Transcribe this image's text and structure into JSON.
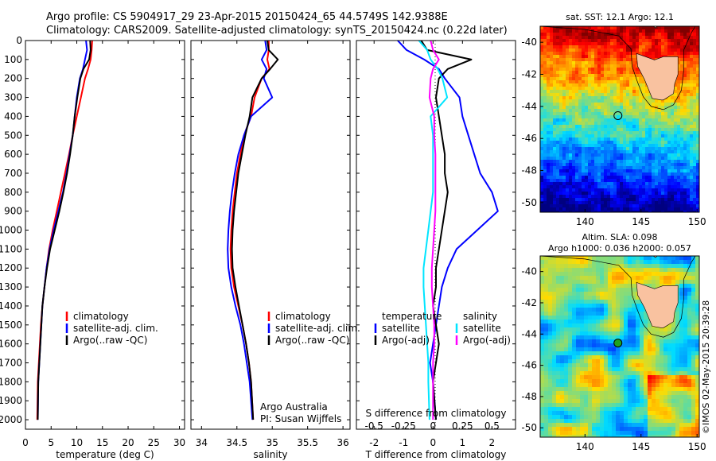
{
  "header": {
    "line1": "Argo profile: CS 5904917_29 23-Apr-2015 20150424_65 44.5749S 142.9388E",
    "line2": "Climatology: CARS2009. Satellite-adjusted climatology: synTS_20150424.nc (0.22d later)"
  },
  "colors": {
    "climatology": "#ff0000",
    "satellite": "#0000ff",
    "argo": "#000000",
    "sat_salinity": "#00e5ff",
    "argo_salinity": "#ff00ff",
    "land": "#f9c2a0"
  },
  "chart_data": [
    {
      "type": "line",
      "id": "temperature",
      "xlabel": "temperature (deg C)",
      "ylabel": "",
      "xlim": [
        0,
        31
      ],
      "ylim": [
        2050,
        0
      ],
      "x_ticks": [
        "0",
        "5",
        "10",
        "15",
        "20",
        "25",
        "30"
      ],
      "y_ticks": [
        "0",
        "100",
        "200",
        "300",
        "400",
        "500",
        "600",
        "700",
        "800",
        "900",
        "1000",
        "1100",
        "1200",
        "1300",
        "1400",
        "1500",
        "1600",
        "1700",
        "1800",
        "1900",
        "2000"
      ],
      "legend": [
        "climatology",
        "satellite-adj. clim.",
        "Argo(..raw -QC)"
      ],
      "series": [
        {
          "name": "climatology",
          "color": "#ff0000",
          "x": [
            13.0,
            12.9,
            12.7,
            12.2,
            11.6,
            10.8,
            10.0,
            9.2,
            8.5,
            7.7,
            6.9,
            6.1,
            5.3,
            4.6,
            4.1,
            3.7,
            3.3,
            3.0,
            2.8,
            2.6,
            2.4,
            2.3
          ],
          "y": [
            0,
            50,
            100,
            150,
            200,
            300,
            400,
            500,
            600,
            700,
            800,
            900,
            1000,
            1100,
            1200,
            1300,
            1400,
            1500,
            1600,
            1700,
            1800,
            2000
          ]
        },
        {
          "name": "satellite-adj. clim.",
          "color": "#0000ff",
          "x": [
            11.8,
            12.0,
            11.6,
            11.2,
            10.6,
            10.0,
            9.6,
            9.2,
            8.6,
            8.0,
            7.3,
            6.4,
            5.5,
            4.7,
            4.1,
            3.7,
            3.3,
            3.1,
            2.9,
            2.7,
            2.5,
            2.4
          ],
          "y": [
            0,
            50,
            100,
            150,
            200,
            300,
            400,
            500,
            600,
            700,
            800,
            900,
            1000,
            1100,
            1200,
            1300,
            1400,
            1500,
            1600,
            1700,
            1800,
            2000
          ]
        },
        {
          "name": "Argo(..raw -QC)",
          "color": "#000000",
          "x": [
            12.6,
            12.7,
            12.4,
            11.3,
            10.7,
            10.1,
            9.6,
            9.2,
            8.7,
            8.1,
            7.4,
            6.6,
            5.7,
            4.8,
            4.2,
            3.7,
            3.3,
            3.1,
            2.9,
            2.7,
            2.5,
            2.4
          ],
          "y": [
            0,
            50,
            100,
            150,
            200,
            300,
            400,
            500,
            600,
            700,
            800,
            900,
            1000,
            1100,
            1200,
            1300,
            1400,
            1500,
            1600,
            1700,
            1800,
            2000
          ]
        }
      ]
    },
    {
      "type": "line",
      "id": "salinity",
      "xlabel": "salinity",
      "xlim": [
        33.85,
        36.1
      ],
      "ylim": [
        2050,
        0
      ],
      "x_ticks": [
        "34",
        "34.5",
        "35",
        "35.5",
        "36"
      ],
      "legend": [
        "climatology",
        "satellite-adj. clim.",
        "Argo(..raw -QC)"
      ],
      "annotation": [
        "Argo Australia",
        "PI: Susan Wijffels"
      ],
      "series": [
        {
          "name": "climatology",
          "color": "#ff0000",
          "x": [
            34.95,
            34.95,
            34.93,
            34.96,
            34.85,
            34.75,
            34.7,
            34.6,
            34.55,
            34.5,
            34.47,
            34.44,
            34.42,
            34.41,
            34.42,
            34.46,
            34.52,
            34.58,
            34.63,
            34.67,
            34.7,
            34.73
          ],
          "y": [
            0,
            50,
            100,
            150,
            200,
            300,
            400,
            500,
            600,
            700,
            800,
            900,
            1000,
            1100,
            1200,
            1300,
            1400,
            1500,
            1600,
            1700,
            1800,
            2000
          ]
        },
        {
          "name": "satellite-adj. clim.",
          "color": "#0000ff",
          "x": [
            34.9,
            34.92,
            34.85,
            34.92,
            34.88,
            35.0,
            34.7,
            34.6,
            34.52,
            34.47,
            34.43,
            34.4,
            34.38,
            34.37,
            34.38,
            34.42,
            34.48,
            34.55,
            34.6,
            34.64,
            34.68,
            34.72
          ],
          "y": [
            0,
            50,
            100,
            150,
            200,
            300,
            400,
            500,
            600,
            700,
            800,
            900,
            1000,
            1100,
            1200,
            1300,
            1400,
            1500,
            1600,
            1700,
            1800,
            2000
          ]
        },
        {
          "name": "Argo(..raw -QC)",
          "color": "#000000",
          "x": [
            34.93,
            34.95,
            35.08,
            34.97,
            34.85,
            34.72,
            34.68,
            34.62,
            34.57,
            34.52,
            34.49,
            34.46,
            34.44,
            34.43,
            34.44,
            34.48,
            34.53,
            34.58,
            34.63,
            34.67,
            34.7,
            34.73
          ],
          "y": [
            0,
            50,
            100,
            150,
            200,
            300,
            400,
            500,
            600,
            700,
            800,
            900,
            1000,
            1100,
            1200,
            1300,
            1400,
            1500,
            1600,
            1700,
            1800,
            2000
          ]
        }
      ]
    },
    {
      "type": "line",
      "id": "difference",
      "xlabel": "T difference from climatology",
      "x2label": "S difference from climatology",
      "xlim": [
        -2.6,
        2.8
      ],
      "x2lim": [
        -0.65,
        0.7
      ],
      "ylim": [
        2050,
        0
      ],
      "x_ticks": [
        "-2",
        "-1",
        "0",
        "1",
        "2"
      ],
      "x2_ticks": [
        "-0.5",
        "-0.25",
        "0",
        "0.25",
        "0.5"
      ],
      "legend_headers": [
        "temperature",
        "salinity"
      ],
      "legend": [
        "satellite",
        "Argo(-adj)",
        "satellite",
        "Argo(-adj)"
      ],
      "series": [
        {
          "name": "satellite",
          "group": "temperature",
          "color": "#0000ff",
          "x": [
            -1.2,
            -0.9,
            -0.3,
            0.2,
            0.4,
            0.9,
            1.0,
            1.2,
            1.4,
            1.6,
            2.0,
            2.2,
            1.5,
            0.8,
            0.5,
            0.3,
            0.2,
            0.1,
            0.0,
            -0.1,
            0.0,
            0.1
          ],
          "y": [
            0,
            50,
            100,
            150,
            200,
            300,
            400,
            500,
            600,
            700,
            800,
            900,
            1000,
            1100,
            1200,
            1300,
            1400,
            1500,
            1600,
            1700,
            1800,
            2000
          ]
        },
        {
          "name": "Argo(-adj)",
          "group": "temperature",
          "color": "#000000",
          "x": [
            -0.4,
            -0.2,
            1.3,
            0.5,
            0.2,
            0.1,
            0.2,
            0.3,
            0.4,
            0.4,
            0.5,
            0.4,
            0.3,
            0.2,
            0.1,
            0.1,
            0.0,
            0.1,
            0.2,
            0.1,
            0.0,
            0.1
          ],
          "y": [
            0,
            50,
            100,
            150,
            200,
            300,
            400,
            500,
            600,
            700,
            800,
            900,
            1000,
            1100,
            1200,
            1300,
            1400,
            1500,
            1600,
            1700,
            1800,
            2000
          ]
        },
        {
          "name": "satellite",
          "group": "salinity",
          "color": "#00e5ff",
          "x": [
            -0.12,
            -0.05,
            -0.02,
            0.04,
            0.08,
            0.12,
            -0.02,
            0.0,
            0.0,
            0.0,
            0.0,
            -0.02,
            -0.04,
            -0.06,
            -0.08,
            -0.08,
            -0.07,
            -0.06,
            -0.05,
            -0.04,
            -0.04,
            -0.03
          ],
          "y": [
            0,
            50,
            100,
            150,
            200,
            300,
            400,
            500,
            600,
            700,
            800,
            900,
            1000,
            1100,
            1200,
            1300,
            1400,
            1500,
            1600,
            1700,
            1800,
            2000
          ]
        },
        {
          "name": "Argo(-adj)",
          "group": "salinity",
          "color": "#ff00ff",
          "x": [
            -0.02,
            0.0,
            0.05,
            0.0,
            -0.02,
            -0.03,
            0.01,
            0.01,
            0.02,
            0.02,
            0.02,
            0.02,
            0.01,
            0.0,
            -0.01,
            -0.01,
            0.0,
            0.01,
            0.01,
            0.0,
            0.0,
            0.0
          ],
          "y": [
            0,
            50,
            100,
            150,
            200,
            300,
            400,
            500,
            600,
            700,
            800,
            900,
            1000,
            1100,
            1200,
            1300,
            1400,
            1500,
            1600,
            1700,
            1800,
            2000
          ]
        }
      ]
    },
    {
      "type": "heatmap",
      "id": "sst-map",
      "title": "sat. SST: 12.1 Argo: 12.1",
      "xlim": [
        136,
        150.2
      ],
      "ylim": [
        -50.6,
        -39
      ],
      "x_ticks": [
        "140",
        "145",
        "150"
      ],
      "y_ticks": [
        "-40",
        "-42",
        "-44",
        "-46",
        "-48",
        "-50"
      ],
      "argo_position": {
        "lon": 142.9388,
        "lat": -44.5749
      }
    },
    {
      "type": "heatmap",
      "id": "sla-map",
      "title": [
        "Altim. SLA: 0.098",
        "Argo h1000: 0.036 h2000: 0.057"
      ],
      "xlim": [
        136,
        150.2
      ],
      "ylim": [
        -50.6,
        -39
      ],
      "x_ticks": [
        "140",
        "145",
        "150"
      ],
      "y_ticks": [
        "-40",
        "-42",
        "-44",
        "-46",
        "-48",
        "-50"
      ],
      "argo_position": {
        "lon": 142.9388,
        "lat": -44.5749
      }
    }
  ],
  "footer": {
    "credit": "©IMOS 02-May-2015 20:39:28"
  }
}
